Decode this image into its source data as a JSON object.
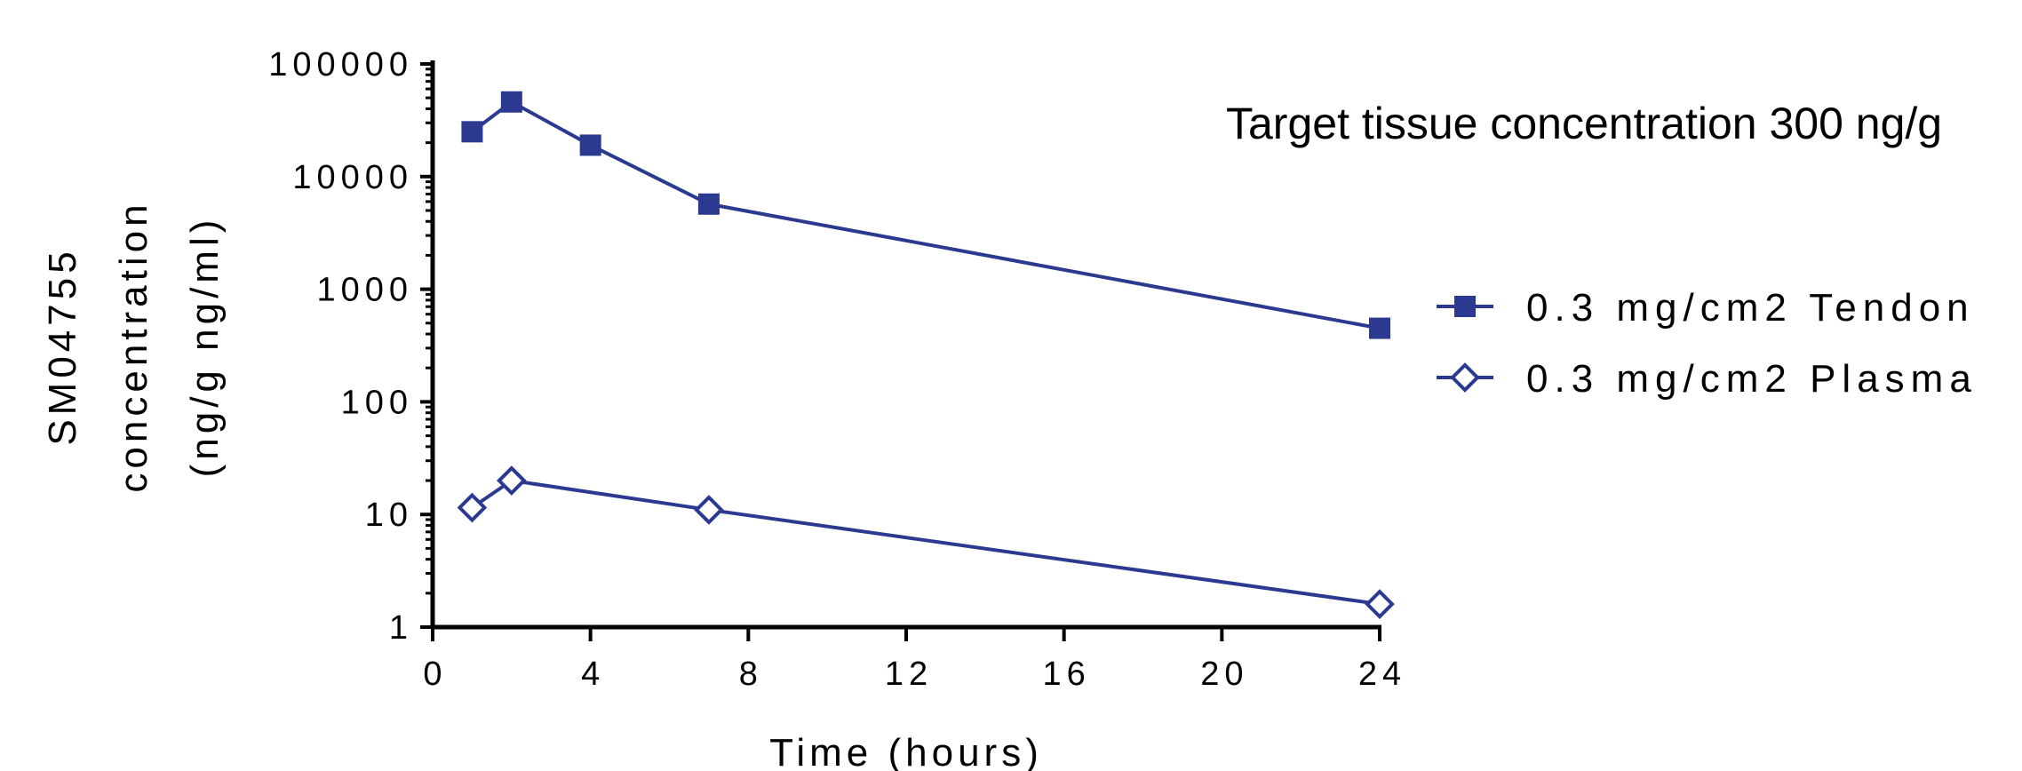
{
  "chart_data": {
    "type": "line",
    "title": "",
    "annotation": "Target tissue concentration 300 ng/g",
    "xlabel": "Time (hours)",
    "ylabel": [
      "SM04755",
      "concentration",
      "(ng/g ng/ml)"
    ],
    "xlim": [
      0,
      24
    ],
    "ylim": [
      1,
      100000
    ],
    "yscale": "log",
    "xticks": [
      0,
      4,
      8,
      12,
      16,
      20,
      24
    ],
    "xtick_labels": [
      "0",
      "4",
      "8",
      "12",
      "16",
      "20",
      "24"
    ],
    "yticks": [
      1,
      10,
      100,
      1000,
      10000,
      100000
    ],
    "ytick_labels": [
      "1",
      "10",
      "100",
      "1000",
      "10000",
      "100000"
    ],
    "grid": false,
    "legend_position": "right",
    "color": "#2b3990",
    "series": [
      {
        "name": "0.3 mg/cm2 Tendon",
        "marker": "filled-square",
        "x": [
          1,
          2,
          4,
          7,
          24
        ],
        "y": [
          25000,
          46000,
          19000,
          5700,
          450
        ]
      },
      {
        "name": "0.3 mg/cm2 Plasma",
        "marker": "open-diamond",
        "x": [
          1,
          2,
          7,
          24
        ],
        "y": [
          11.5,
          20,
          11,
          1.6
        ]
      }
    ]
  }
}
